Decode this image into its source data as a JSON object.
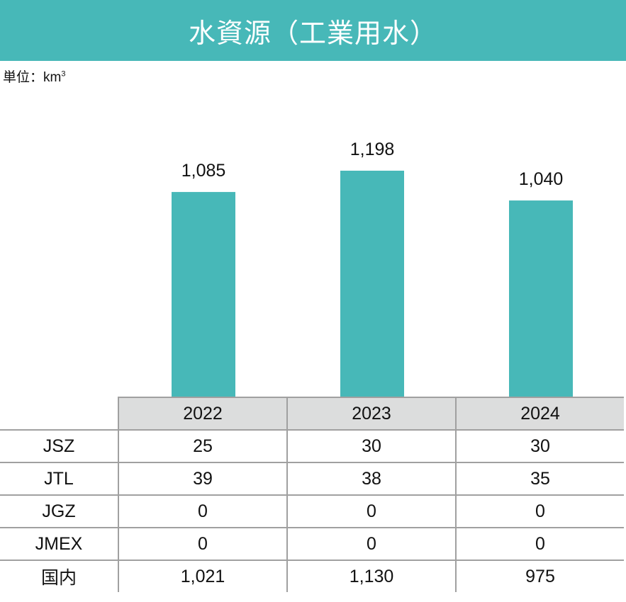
{
  "title": "水資源（工業用水）",
  "unit": {
    "label": "単位：km",
    "superscript": "3"
  },
  "colors": {
    "bar": "#47b8b8",
    "header_bg": "#dcdddd",
    "border": "#a0a0a0"
  },
  "chart_data": {
    "type": "bar",
    "categories": [
      "2022",
      "2023",
      "2024"
    ],
    "values": [
      1085,
      1198,
      1040
    ],
    "data_labels": [
      "1,085",
      "1,198",
      "1,040"
    ],
    "ylim": [
      0,
      1300
    ],
    "grid": false
  },
  "table": {
    "columns": [
      "2022",
      "2023",
      "2024"
    ],
    "rows": [
      {
        "label": "JSZ",
        "values": [
          "25",
          "30",
          "30"
        ]
      },
      {
        "label": "JTL",
        "values": [
          "39",
          "38",
          "35"
        ]
      },
      {
        "label": "JGZ",
        "values": [
          "0",
          "0",
          "0"
        ]
      },
      {
        "label": "JMEX",
        "values": [
          "0",
          "0",
          "0"
        ]
      },
      {
        "label": "国内",
        "values": [
          "1,021",
          "1,130",
          "975"
        ]
      }
    ]
  }
}
